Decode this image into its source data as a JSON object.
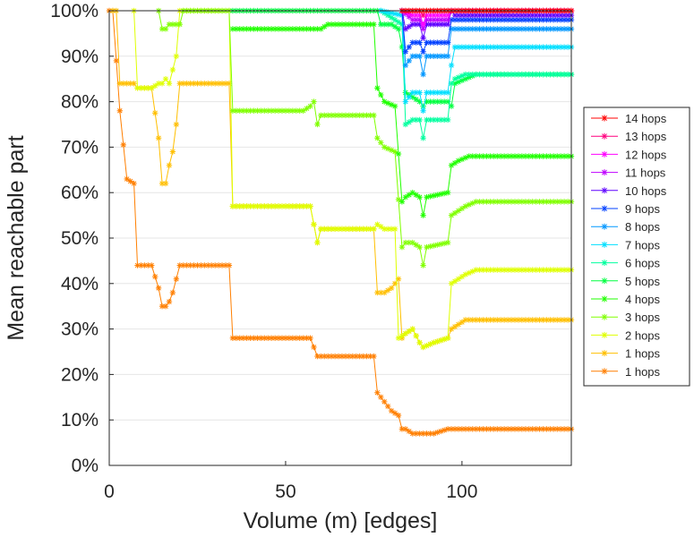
{
  "chart_data": {
    "type": "line",
    "title": "",
    "xlabel": "Volume (m) [edges]",
    "ylabel": "Mean reachable part",
    "xlim": [
      0,
      131
    ],
    "ylim": [
      0,
      100
    ],
    "xticks": [
      0,
      50,
      100
    ],
    "yticks": [
      0,
      10,
      20,
      30,
      40,
      50,
      60,
      70,
      80,
      90,
      100
    ],
    "y_unit": "%",
    "grid": "horizontal",
    "legend_position": "right",
    "marker": "asterisk",
    "series": [
      {
        "name": "14 hops",
        "color": "#ff0000",
        "points": [
          [
            83,
            100
          ],
          [
            131,
            100
          ]
        ]
      },
      {
        "name": "13 hops",
        "color": "#ff007f",
        "points": [
          [
            83,
            100
          ],
          [
            88,
            100
          ],
          [
            89,
            99
          ],
          [
            90,
            100
          ],
          [
            131,
            100
          ]
        ]
      },
      {
        "name": "12 hops",
        "color": "#ff00ff",
        "points": [
          [
            83,
            100
          ],
          [
            86,
            99
          ],
          [
            88,
            99
          ],
          [
            89,
            97
          ],
          [
            90,
            99
          ],
          [
            96,
            99
          ],
          [
            97,
            100
          ],
          [
            131,
            100
          ]
        ]
      },
      {
        "name": "11 hops",
        "color": "#bf00ff",
        "points": [
          [
            83,
            100
          ],
          [
            86,
            98
          ],
          [
            88,
            98
          ],
          [
            89,
            96
          ],
          [
            90,
            98
          ],
          [
            96,
            98
          ],
          [
            97,
            100
          ],
          [
            131,
            100
          ]
        ]
      },
      {
        "name": "10 hops",
        "color": "#5f00ff",
        "points": [
          [
            83,
            100
          ],
          [
            84,
            96
          ],
          [
            86,
            97
          ],
          [
            88,
            97
          ],
          [
            89,
            94
          ],
          [
            90,
            97
          ],
          [
            96,
            97
          ],
          [
            97,
            100
          ],
          [
            98,
            99
          ],
          [
            131,
            99
          ]
        ]
      },
      {
        "name": "9 hops",
        "color": "#0040ff",
        "points": [
          [
            83,
            100
          ],
          [
            84,
            91
          ],
          [
            86,
            93
          ],
          [
            88,
            93
          ],
          [
            89,
            91
          ],
          [
            90,
            93
          ],
          [
            96,
            93
          ],
          [
            97,
            98
          ],
          [
            98,
            98
          ],
          [
            131,
            98
          ]
        ]
      },
      {
        "name": "8 hops",
        "color": "#0097ff",
        "points": [
          [
            83,
            100
          ],
          [
            84,
            88
          ],
          [
            86,
            90
          ],
          [
            88,
            90
          ],
          [
            89,
            86
          ],
          [
            90,
            90
          ],
          [
            96,
            90
          ],
          [
            97,
            96
          ],
          [
            98,
            96
          ],
          [
            131,
            96
          ]
        ]
      },
      {
        "name": "7 hops",
        "color": "#00dfff",
        "points": [
          [
            77,
            100
          ],
          [
            83,
            99
          ],
          [
            84,
            80
          ],
          [
            86,
            82
          ],
          [
            88,
            82
          ],
          [
            89,
            78
          ],
          [
            90,
            82
          ],
          [
            96,
            82
          ],
          [
            97,
            88
          ],
          [
            98,
            92
          ],
          [
            131,
            92
          ]
        ]
      },
      {
        "name": "6 hops",
        "color": "#00ff9f",
        "points": [
          [
            77,
            100
          ],
          [
            83,
            97
          ],
          [
            84,
            75
          ],
          [
            86,
            76
          ],
          [
            88,
            76
          ],
          [
            89,
            72
          ],
          [
            90,
            76
          ],
          [
            96,
            76
          ],
          [
            97,
            84
          ],
          [
            98,
            85
          ],
          [
            101,
            86
          ],
          [
            131,
            86
          ]
        ]
      },
      {
        "name": "5 hops",
        "color": "#00ff40",
        "points": [
          [
            35,
            100
          ],
          [
            76,
            100
          ],
          [
            77,
            97
          ],
          [
            80,
            97
          ],
          [
            82,
            96
          ],
          [
            83,
            92
          ],
          [
            84,
            82
          ],
          [
            86,
            81
          ],
          [
            88,
            80
          ],
          [
            89,
            79
          ],
          [
            90,
            80
          ],
          [
            96,
            80
          ],
          [
            97,
            79
          ],
          [
            98,
            84
          ],
          [
            101,
            85
          ],
          [
            104,
            86
          ],
          [
            131,
            86
          ]
        ]
      },
      {
        "name": "4 hops",
        "color": "#20ff00",
        "points": [
          [
            35,
            96
          ],
          [
            40,
            96
          ],
          [
            58,
            96
          ],
          [
            60,
            96
          ],
          [
            62,
            97
          ],
          [
            75,
            97
          ],
          [
            76,
            83
          ],
          [
            78,
            80
          ],
          [
            81,
            79
          ],
          [
            83,
            58
          ],
          [
            84,
            59
          ],
          [
            86,
            60
          ],
          [
            88,
            59
          ],
          [
            89,
            55
          ],
          [
            90,
            59
          ],
          [
            96,
            60
          ],
          [
            97,
            66
          ],
          [
            99,
            67
          ],
          [
            102,
            68
          ],
          [
            131,
            68
          ]
        ]
      },
      {
        "name": "3 hops",
        "color": "#80ff00",
        "points": [
          [
            14,
            100
          ],
          [
            15,
            96
          ],
          [
            16,
            96
          ],
          [
            17,
            97
          ],
          [
            20,
            97
          ],
          [
            21,
            100
          ],
          [
            34,
            100
          ],
          [
            35,
            78
          ],
          [
            55,
            78
          ],
          [
            57,
            79
          ],
          [
            58,
            80
          ],
          [
            59,
            75
          ],
          [
            60,
            77
          ],
          [
            62,
            77
          ],
          [
            75,
            77
          ],
          [
            76,
            72
          ],
          [
            78,
            70
          ],
          [
            81,
            69
          ],
          [
            83,
            48
          ],
          [
            84,
            49
          ],
          [
            86,
            49
          ],
          [
            88,
            48
          ],
          [
            89,
            44
          ],
          [
            90,
            48
          ],
          [
            96,
            49
          ],
          [
            97,
            55
          ],
          [
            99,
            56
          ],
          [
            101,
            57
          ],
          [
            104,
            58
          ],
          [
            131,
            58
          ]
        ]
      },
      {
        "name": "2 hops",
        "color": "#dfff00",
        "points": [
          [
            7,
            100
          ],
          [
            8,
            83
          ],
          [
            12,
            83
          ],
          [
            14,
            84
          ],
          [
            15,
            84
          ],
          [
            16,
            85
          ],
          [
            17,
            84
          ],
          [
            19,
            90
          ],
          [
            20,
            100
          ],
          [
            34,
            100
          ],
          [
            35,
            57
          ],
          [
            55,
            57
          ],
          [
            57,
            57
          ],
          [
            58,
            53
          ],
          [
            59,
            49
          ],
          [
            60,
            52
          ],
          [
            62,
            52
          ],
          [
            75,
            52
          ],
          [
            76,
            53
          ],
          [
            78,
            52
          ],
          [
            81,
            52
          ],
          [
            82,
            28
          ],
          [
            84,
            29
          ],
          [
            86,
            30
          ],
          [
            88,
            27
          ],
          [
            89,
            26
          ],
          [
            92,
            27
          ],
          [
            96,
            28
          ],
          [
            97,
            40
          ],
          [
            99,
            41
          ],
          [
            101,
            42
          ],
          [
            104,
            43
          ],
          [
            131,
            43
          ]
        ]
      },
      {
        "name": "1 hops",
        "color": "#ffbf00",
        "points": [
          [
            1,
            100
          ],
          [
            2,
            100
          ],
          [
            3,
            84
          ],
          [
            7,
            84
          ],
          [
            8,
            83
          ],
          [
            12,
            83
          ],
          [
            14,
            72
          ],
          [
            15,
            62
          ],
          [
            16,
            62
          ],
          [
            17,
            66
          ],
          [
            18,
            69
          ],
          [
            19,
            75
          ],
          [
            20,
            84
          ],
          [
            34,
            84
          ],
          [
            35,
            57
          ],
          [
            55,
            57
          ],
          [
            57,
            57
          ],
          [
            58,
            53
          ],
          [
            59,
            49
          ],
          [
            60,
            52
          ],
          [
            62,
            52
          ],
          [
            75,
            52
          ],
          [
            76,
            38
          ],
          [
            78,
            38
          ],
          [
            80,
            39
          ],
          [
            82,
            41
          ],
          [
            83,
            28
          ],
          [
            84,
            29
          ],
          [
            86,
            30
          ],
          [
            88,
            27
          ],
          [
            89,
            26
          ],
          [
            92,
            27
          ],
          [
            96,
            28
          ],
          [
            97,
            30
          ],
          [
            99,
            31
          ],
          [
            101,
            32
          ],
          [
            104,
            32
          ],
          [
            131,
            32
          ]
        ]
      },
      {
        "name": "1 hops",
        "color": "#ff7f00",
        "points": [
          [
            0,
            100
          ],
          [
            1,
            100
          ],
          [
            3,
            78
          ],
          [
            5,
            63
          ],
          [
            7,
            62
          ],
          [
            8,
            44
          ],
          [
            12,
            44
          ],
          [
            14,
            39
          ],
          [
            15,
            35
          ],
          [
            16,
            35
          ],
          [
            17,
            36
          ],
          [
            18,
            38
          ],
          [
            19,
            41
          ],
          [
            20,
            44
          ],
          [
            34,
            44
          ],
          [
            35,
            28
          ],
          [
            55,
            28
          ],
          [
            57,
            28
          ],
          [
            58,
            26
          ],
          [
            59,
            24
          ],
          [
            60,
            24
          ],
          [
            62,
            24
          ],
          [
            75,
            24
          ],
          [
            76,
            16
          ],
          [
            78,
            14
          ],
          [
            80,
            12
          ],
          [
            82,
            11
          ],
          [
            83,
            8
          ],
          [
            84,
            8
          ],
          [
            86,
            7
          ],
          [
            88,
            7
          ],
          [
            89,
            7
          ],
          [
            92,
            7
          ],
          [
            96,
            8
          ],
          [
            99,
            8
          ],
          [
            101,
            8
          ],
          [
            104,
            8
          ],
          [
            131,
            8
          ]
        ]
      }
    ]
  }
}
